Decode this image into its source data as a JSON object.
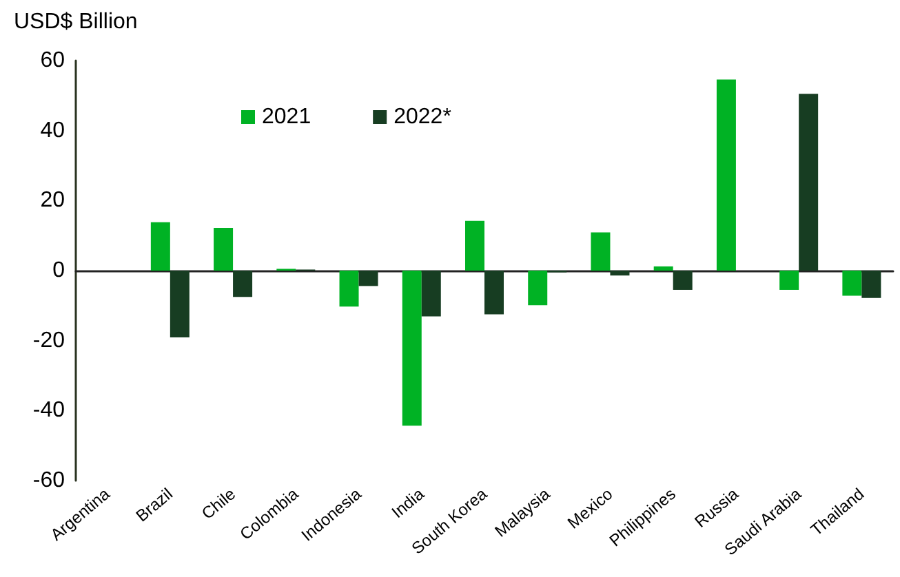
{
  "chart_data": {
    "type": "bar",
    "ylabel": "USD$ Billion",
    "categories": [
      "Argentina",
      "Brazil",
      "Chile",
      "Colombia",
      "Indonesia",
      "India",
      "South Korea",
      "Malaysia",
      "Mexico",
      "Philippines",
      "Russia",
      "Saudi Arabia",
      "Thailand"
    ],
    "series": [
      {
        "name": "2021",
        "color": "#00b224",
        "values": [
          null,
          13.8,
          12.2,
          0.5,
          -10.3,
          -44.3,
          14.2,
          -9.9,
          10.9,
          1.2,
          54.6,
          -5.5,
          -7.2
        ]
      },
      {
        "name": "2022*",
        "color": "#173d22",
        "values": [
          null,
          -19.1,
          -7.5,
          0.3,
          -4.4,
          -13.1,
          -12.5,
          -0.5,
          -1.4,
          -5.5,
          null,
          50.5,
          -7.8
        ]
      }
    ],
    "ylim": [
      -60,
      60
    ],
    "yticks": [
      -60,
      -40,
      -20,
      0,
      20,
      40,
      60
    ],
    "legend": "top left"
  }
}
